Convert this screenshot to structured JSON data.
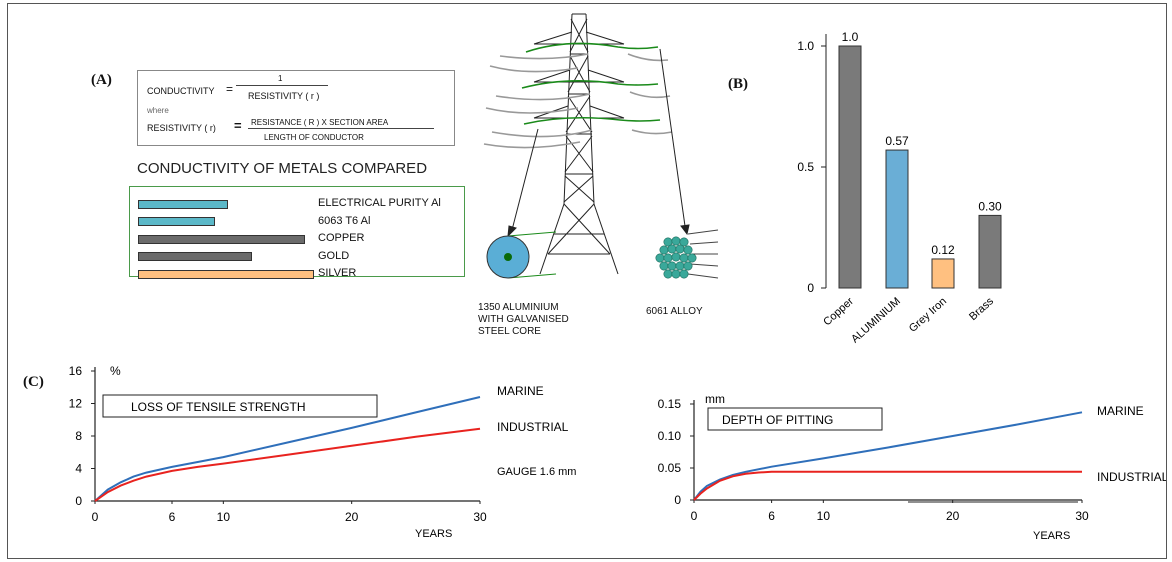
{
  "panel_a": {
    "label": "(A)",
    "formula": {
      "conductivity": "CONDUCTIVITY",
      "eq1": "=",
      "numerator": "1",
      "denominator": "RESISTIVITY ( r )",
      "where": "where",
      "resistivity": "RESISTIVITY ( r)",
      "eq2": "=",
      "numerator2": "RESISTANCE ( R ) X SECTION AREA",
      "denominator2": "LENGTH OF CONDUCTOR"
    },
    "compare_title": "CONDUCTIVITY OF METALS COMPARED"
  },
  "tower": {
    "left_caption": [
      "1350 ALUMINIUM",
      "WITH GALVANISED",
      "STEEL CORE"
    ],
    "right_caption": "6061 ALLOY"
  },
  "chart_data": [
    {
      "id": "conductivity-compared",
      "type": "bar",
      "orientation": "horizontal",
      "categories": [
        "ELECTRICAL PURITY Al",
        "6063 T6 Al",
        "COPPER",
        "GOLD",
        "SILVER"
      ],
      "values": [
        0.51,
        0.44,
        0.95,
        0.65,
        1.0
      ],
      "colors": [
        "#5bb8c8",
        "#5bb8c8",
        "#6b6b6b",
        "#6b6b6b",
        "#ffc080"
      ],
      "xlim": [
        0,
        1.0
      ]
    },
    {
      "id": "panel-b",
      "label": "(B)",
      "type": "bar",
      "categories": [
        "Copper",
        "ALUMINIUM",
        "Grey Iron",
        "Brass"
      ],
      "values": [
        1.0,
        0.57,
        0.12,
        0.3
      ],
      "data_labels": [
        "1.0",
        "0.57",
        "0.12",
        "0.30"
      ],
      "colors": [
        "#7a7a7a",
        "#6aaed6",
        "#ffc080",
        "#7a7a7a"
      ],
      "ylim": [
        0,
        1.0
      ],
      "yticks": [
        "1.0",
        "0.5",
        "0"
      ],
      "ytick_values": [
        1.0,
        0.5,
        0
      ]
    },
    {
      "id": "panel-c-left",
      "label": "(C)",
      "type": "line",
      "title": "LOSS OF TENSILE STRENGTH",
      "ylabel": "%",
      "xlabel": "YEARS",
      "xlim": [
        0,
        30
      ],
      "ylim": [
        0,
        16
      ],
      "xticks": [
        "0",
        "6",
        "10",
        "20",
        "30"
      ],
      "xtick_values": [
        0,
        6,
        10,
        20,
        30
      ],
      "yticks": [
        "16",
        "12",
        "8",
        "4",
        "0"
      ],
      "ytick_values": [
        16,
        12,
        8,
        4,
        0
      ],
      "note": "GAUGE 1.6 mm",
      "series": [
        {
          "name": "MARINE",
          "color": "#2f6fba",
          "x": [
            0,
            1,
            2,
            3,
            4,
            6,
            8,
            10,
            15,
            20,
            25,
            30
          ],
          "y": [
            0,
            1.4,
            2.3,
            3.0,
            3.5,
            4.2,
            4.8,
            5.4,
            7.2,
            9.0,
            10.9,
            12.8
          ]
        },
        {
          "name": "INDUSTRIAL",
          "color": "#e8231f",
          "x": [
            0,
            1,
            2,
            3,
            4,
            6,
            8,
            10,
            15,
            20,
            25,
            30
          ],
          "y": [
            0,
            1.1,
            1.9,
            2.5,
            3.0,
            3.7,
            4.2,
            4.6,
            5.7,
            6.8,
            7.9,
            8.9
          ]
        }
      ]
    },
    {
      "id": "panel-c-right",
      "type": "line",
      "title": "DEPTH OF PITTING",
      "ylabel": "mm",
      "xlabel": "YEARS",
      "xlim": [
        0,
        30
      ],
      "ylim": [
        0,
        0.15
      ],
      "xticks": [
        "0",
        "6",
        "10",
        "20",
        "30"
      ],
      "xtick_values": [
        0,
        6,
        10,
        20,
        30
      ],
      "yticks": [
        "0.15",
        "0.10",
        "0.05",
        "0"
      ],
      "ytick_values": [
        0.15,
        0.1,
        0.05,
        0
      ],
      "series": [
        {
          "name": "MARINE",
          "color": "#2f6fba",
          "x": [
            0,
            0.5,
            1,
            2,
            3,
            4,
            6,
            10,
            15,
            20,
            25,
            30
          ],
          "y": [
            0,
            0.013,
            0.022,
            0.032,
            0.039,
            0.044,
            0.052,
            0.065,
            0.082,
            0.1,
            0.118,
            0.137
          ]
        },
        {
          "name": "INDUSTRIAL",
          "color": "#e8231f",
          "x": [
            0,
            0.5,
            1,
            2,
            3,
            4,
            5,
            6,
            10,
            20,
            30
          ],
          "y": [
            0,
            0.01,
            0.018,
            0.03,
            0.037,
            0.041,
            0.043,
            0.044,
            0.044,
            0.044,
            0.044
          ]
        }
      ]
    }
  ]
}
